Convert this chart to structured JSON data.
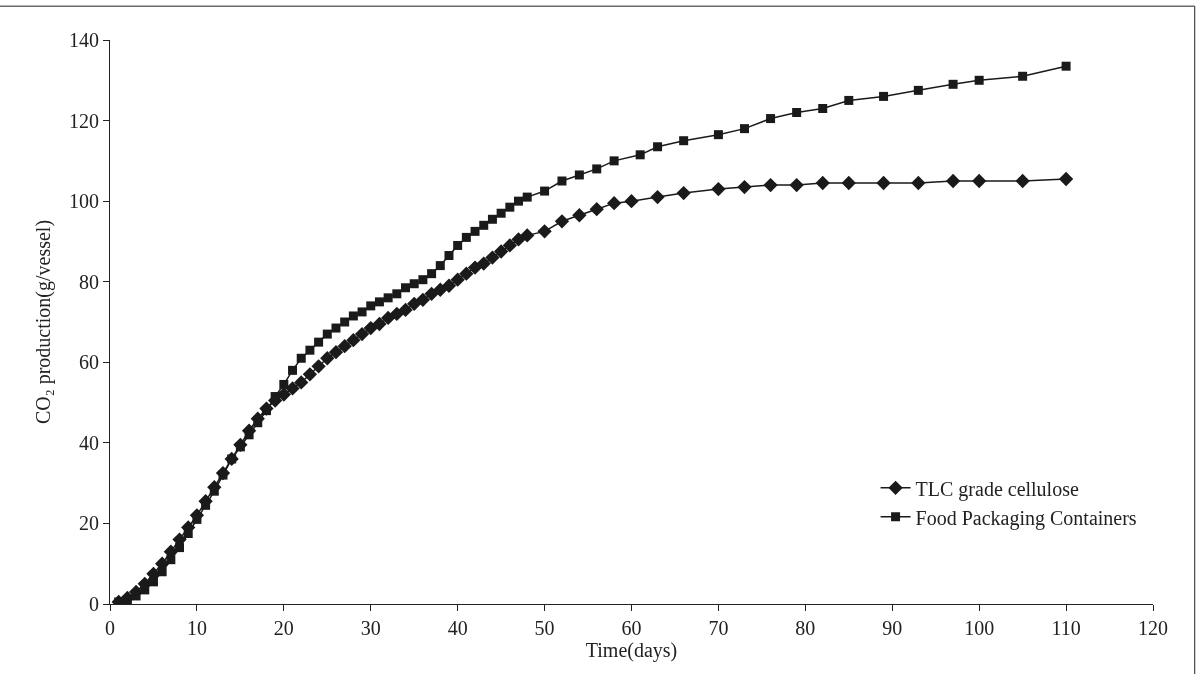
{
  "chart_data": {
    "type": "line",
    "xlabel": "Time(days)",
    "ylabel": "CO₂ production(g/vessel)",
    "xlim": [
      0,
      120
    ],
    "xticks": [
      0,
      10,
      20,
      30,
      40,
      50,
      60,
      70,
      80,
      90,
      100,
      110,
      120
    ],
    "ylim": [
      0,
      140
    ],
    "yticks": [
      0,
      20,
      40,
      60,
      80,
      100,
      120,
      140
    ],
    "grid": false,
    "legend": "bottom right",
    "line_style": "solid",
    "series": [
      {
        "name": "TLC grade cellulose",
        "color": "#1a1a1a",
        "marker": "diamond",
        "x": [
          1,
          2,
          3,
          4,
          5,
          6,
          7,
          8,
          9,
          10,
          11,
          12,
          13,
          14,
          15,
          16,
          17,
          18,
          19,
          20,
          21,
          22,
          23,
          24,
          25,
          26,
          27,
          28,
          29,
          30,
          31,
          32,
          33,
          34,
          35,
          36,
          37,
          38,
          39,
          40,
          41,
          42,
          43,
          44,
          45,
          46,
          47,
          48,
          50,
          52,
          54,
          56,
          58,
          60,
          63,
          66,
          70,
          73,
          76,
          79,
          82,
          85,
          89,
          93,
          97,
          100,
          105,
          110
        ],
        "values": [
          0.5,
          1.5,
          3,
          5,
          7.5,
          10,
          13,
          16,
          19,
          22,
          25.5,
          29,
          32.5,
          36,
          39.5,
          43,
          46,
          48.5,
          50.5,
          52,
          53.5,
          55,
          57,
          59,
          61,
          62.5,
          64,
          65.5,
          67,
          68.5,
          69.5,
          71,
          72,
          73,
          74.5,
          75.5,
          77,
          78,
          79,
          80.5,
          82,
          83.5,
          84.5,
          86,
          87.5,
          89,
          90.5,
          91.5,
          92.5,
          95,
          96.5,
          98,
          99.5,
          100,
          101,
          102,
          103,
          103.5,
          104,
          104,
          104.5,
          104.5,
          104.5,
          104.5,
          105,
          105,
          105,
          105.5
        ]
      },
      {
        "name": "Food Packaging Containers",
        "color": "#1a1a1a",
        "marker": "square",
        "x": [
          1,
          2,
          3,
          4,
          5,
          6,
          7,
          8,
          9,
          10,
          11,
          12,
          13,
          14,
          15,
          16,
          17,
          18,
          19,
          20,
          21,
          22,
          23,
          24,
          25,
          26,
          27,
          28,
          29,
          30,
          31,
          32,
          33,
          34,
          35,
          36,
          37,
          38,
          39,
          40,
          41,
          42,
          43,
          44,
          45,
          46,
          47,
          48,
          50,
          52,
          54,
          56,
          58,
          61,
          63,
          66,
          70,
          73,
          76,
          79,
          82,
          85,
          89,
          93,
          97,
          100,
          105,
          110
        ],
        "values": [
          0.5,
          1,
          2,
          3.5,
          5.5,
          8,
          11,
          14,
          17.5,
          21,
          24.5,
          28,
          32,
          36,
          39,
          42,
          45,
          48,
          51.5,
          54.5,
          58,
          61,
          63,
          65,
          67,
          68.5,
          70,
          71.5,
          72.5,
          74,
          75,
          76,
          77,
          78.5,
          79.5,
          80.5,
          82,
          84,
          86.5,
          89,
          91,
          92.5,
          94,
          95.5,
          97,
          98.5,
          100,
          101,
          102.5,
          105,
          106.5,
          108,
          110,
          111.5,
          113.5,
          115,
          116.5,
          118,
          120.5,
          122,
          123,
          125,
          126,
          127.5,
          129,
          130,
          131,
          133.5
        ]
      }
    ]
  }
}
